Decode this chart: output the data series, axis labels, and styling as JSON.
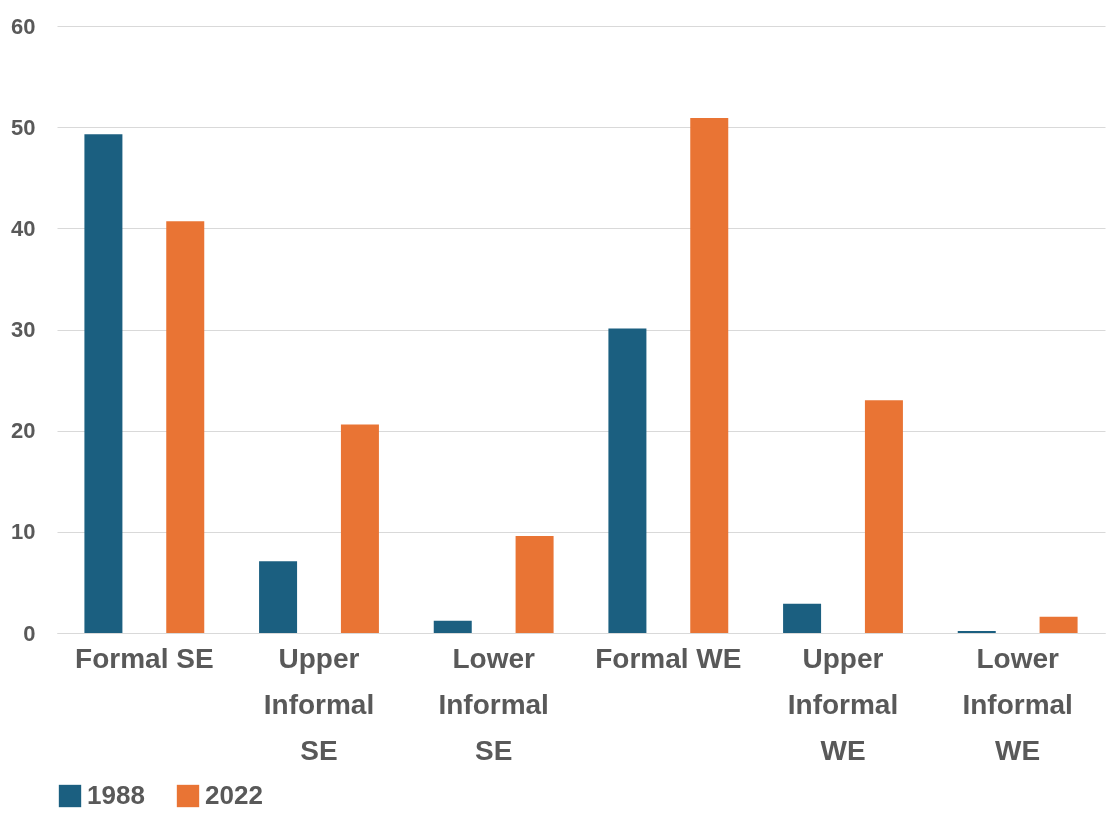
{
  "chart_data": {
    "type": "bar",
    "categories": [
      "Formal SE",
      "Upper Informal SE",
      "Lower Informal SE",
      "Formal WE",
      "Upper Informal WE",
      "Lower Informal WE"
    ],
    "series": [
      {
        "name": "1988",
        "color": "#1b5f80",
        "values": [
          49.3,
          7.1,
          1.2,
          30.1,
          2.9,
          0.2
        ]
      },
      {
        "name": "2022",
        "color": "#e97434",
        "values": [
          40.7,
          20.6,
          9.6,
          50.9,
          23.0,
          1.6
        ]
      }
    ],
    "ylim": [
      0,
      60
    ],
    "yticks": [
      0,
      10,
      20,
      30,
      40,
      50,
      60
    ],
    "grid": "y",
    "legend": "bottom"
  }
}
